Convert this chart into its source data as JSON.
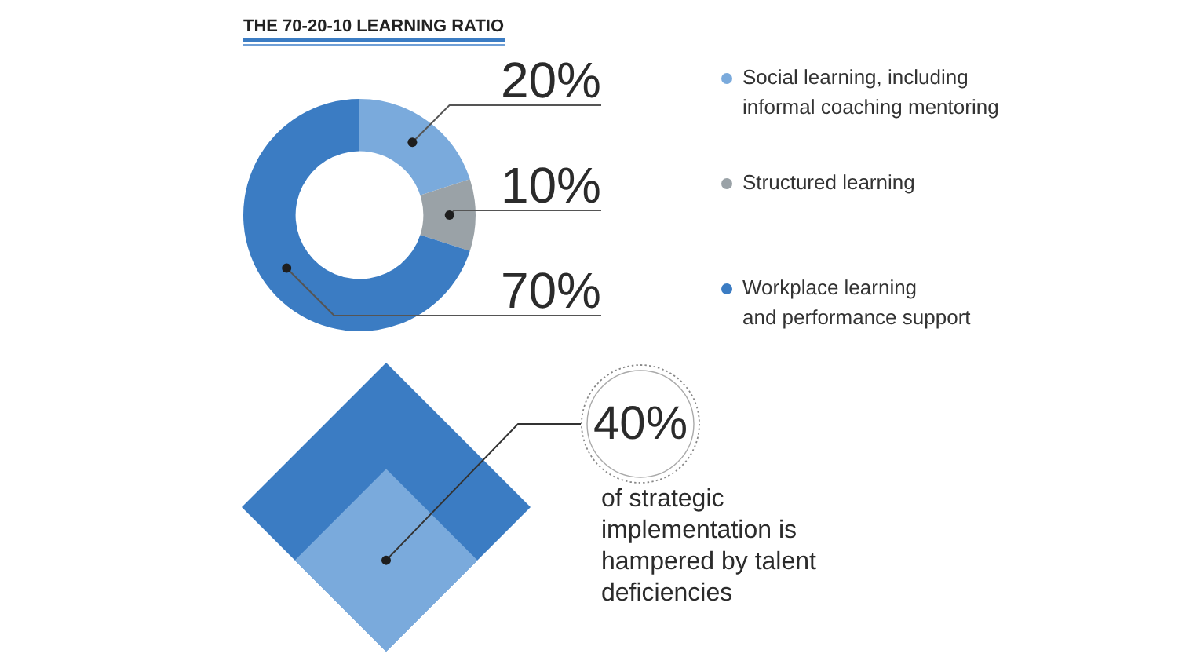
{
  "chart_data": [
    {
      "type": "donut",
      "title": "THE 70-20-10 LEARNING RATIO",
      "categories": [
        "Social learning, including\ninformal coaching mentoring",
        "Structured learning",
        "Workplace learning\nand performance support"
      ],
      "values": [
        20,
        10,
        70
      ],
      "colors": [
        "#7aaadc",
        "#9aa2a7",
        "#3b7cc3"
      ],
      "value_labels": [
        "20%",
        "10%",
        "70%"
      ],
      "legend": "right"
    },
    {
      "type": "other",
      "values": [
        40
      ],
      "color": "#7aaadc",
      "value_labels": [
        "40%"
      ],
      "annotations": [
        "of strategic implementation is hampered by talent deficiencies"
      ]
    }
  ]
}
